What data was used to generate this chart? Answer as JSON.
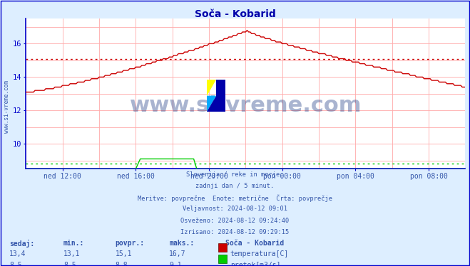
{
  "title": "Soča - Kobarid",
  "bg_color": "#ddeeff",
  "plot_bg_color": "#ffffff",
  "grid_color": "#ffaaaa",
  "axis_color": "#0000cc",
  "title_color": "#0000aa",
  "text_color": "#3355aa",
  "watermark_color": "#0a2a7a",
  "ylim": [
    8.5,
    17.5
  ],
  "xlim": [
    0,
    288
  ],
  "xtick_positions": [
    24,
    72,
    120,
    168,
    216,
    264
  ],
  "xtick_labels": [
    "ned 12:00",
    "ned 16:00",
    "ned 20:00",
    "pon 00:00",
    "pon 04:00",
    "pon 08:00"
  ],
  "ytick_positions": [
    10,
    12,
    14,
    16
  ],
  "ytick_labels": [
    "10",
    "12",
    "14",
    "16"
  ],
  "temp_avg_line": 15.1,
  "flow_avg_line": 8.8,
  "info_lines": [
    "Slovenija / reke in morje.",
    "zadnji dan / 5 minut.",
    "Meritve: povprečne  Enote: metrične  Črta: povprečje",
    "Veljavnost: 2024-08-12 09:01",
    "Osveženo: 2024-08-12 09:24:40",
    "Izrisano: 2024-08-12 09:29:15"
  ],
  "table_headers": [
    "sedaj:",
    "min.:",
    "povpr.:",
    "maks.:"
  ],
  "table_row1_vals": [
    "13,4",
    "13,1",
    "15,1",
    "16,7"
  ],
  "table_row2_vals": [
    "8,5",
    "8,5",
    "8,8",
    "9,1"
  ],
  "legend_color1": "#cc0000",
  "legend_label1": "temperatura[C]",
  "legend_color2": "#00cc00",
  "legend_label2": "pretok[m3/s]",
  "station_label": "Soča - Kobarid",
  "watermark_text": "www.si-vreme.com"
}
